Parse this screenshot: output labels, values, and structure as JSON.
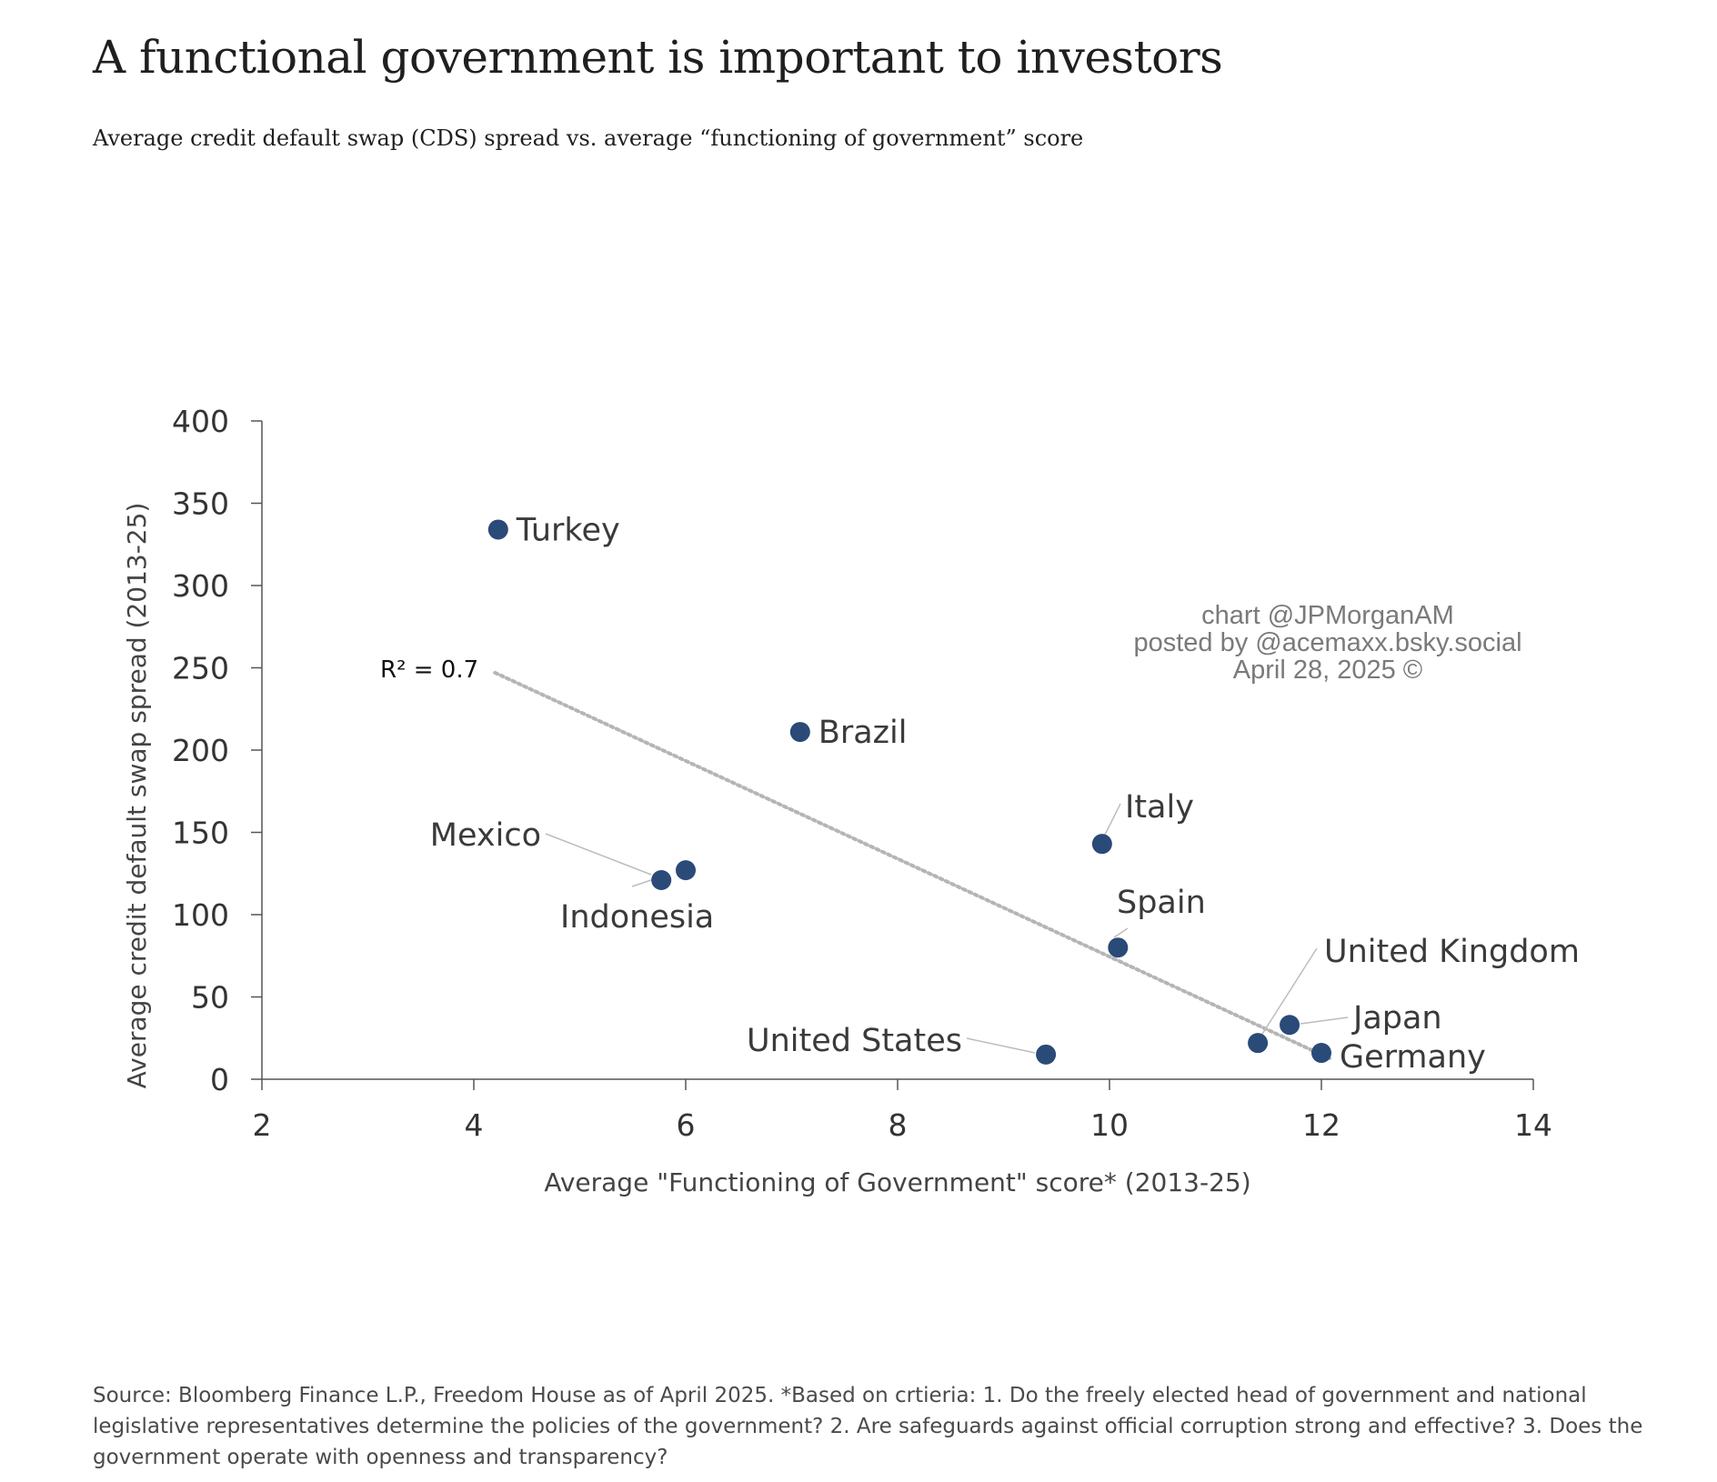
{
  "header": {
    "title": "A functional government is important to investors",
    "subtitle": "Average credit default swap (CDS) spread vs. average “functioning of government” score"
  },
  "footer": {
    "source": "Source: Bloomberg Finance L.P., Freedom House as of April 2025. *Based on crtieria: 1. Do the freely elected head of government and national legislative representatives determine the policies of the government? 2. Are safeguards against official corruption strong and effective? 3. Does the government operate with openness and transparency?"
  },
  "watermark": {
    "line1": "chart @JPMorganAM",
    "line2": "posted by @acemaxx.bsky.social",
    "line3": "April 28, 2025 ©"
  },
  "chart_data": {
    "type": "scatter",
    "xlabel": "Average \"Functioning of Government\" score* (2013-25)",
    "ylabel": "Average credit default swap spread (2013-25)",
    "xlim": [
      2,
      14
    ],
    "ylim": [
      0,
      400
    ],
    "xticks": [
      2,
      4,
      6,
      8,
      10,
      12,
      14
    ],
    "yticks": [
      0,
      50,
      100,
      150,
      200,
      250,
      300,
      350,
      400
    ],
    "grid": false,
    "point_color": "#2a4a78",
    "trendline_color": "#b5b5b5",
    "trendline": {
      "label": "R² = 0.7",
      "x": [
        4.2,
        12.1
      ],
      "y": [
        247,
        12
      ]
    },
    "points": [
      {
        "label": "Turkey",
        "x": 4.23,
        "y": 334
      },
      {
        "label": "Brazil",
        "x": 7.08,
        "y": 211
      },
      {
        "label": "Mexico",
        "x": 6.0,
        "y": 127
      },
      {
        "label": "Indonesia",
        "x": 5.77,
        "y": 121
      },
      {
        "label": "Italy",
        "x": 9.93,
        "y": 143
      },
      {
        "label": "Spain",
        "x": 10.08,
        "y": 80
      },
      {
        "label": "United States",
        "x": 9.4,
        "y": 15
      },
      {
        "label": "United Kingdom",
        "x": 11.4,
        "y": 22
      },
      {
        "label": "Japan",
        "x": 11.7,
        "y": 33
      },
      {
        "label": "Germany",
        "x": 12.0,
        "y": 16
      }
    ]
  }
}
